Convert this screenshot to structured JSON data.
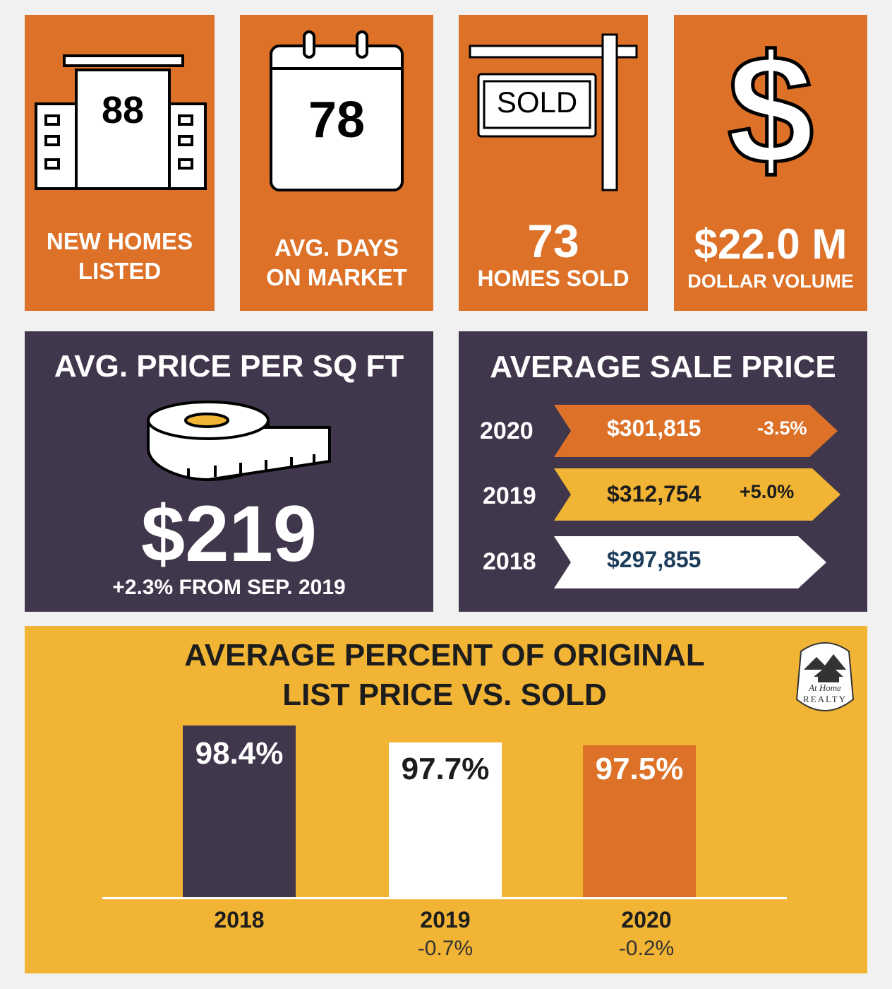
{
  "tiles": {
    "new_homes": {
      "value": "88",
      "label_line1": "NEW HOMES",
      "label_line2": "LISTED"
    },
    "days_on_market": {
      "value": "78",
      "label_line1": "AVG. DAYS",
      "label_line2": "ON MARKET"
    },
    "homes_sold": {
      "sign_text": "SOLD",
      "value": "73",
      "label": "HOMES SOLD"
    },
    "dollar_volume": {
      "symbol": "$",
      "value": "$22.0 M",
      "label": "DOLLAR VOLUME"
    }
  },
  "price_sqft": {
    "title": "AVG. PRICE PER SQ FT",
    "value": "$219",
    "change": "+2.3% FROM SEP. 2019"
  },
  "avg_sale_price": {
    "title": "AVERAGE SALE PRICE",
    "rows": [
      {
        "year": "2020",
        "price": "$301,815",
        "change": "-3.5%",
        "color": "#dd7128"
      },
      {
        "year": "2019",
        "price": "$312,754",
        "change": "+5.0%",
        "color": "#f1b434"
      },
      {
        "year": "2018",
        "price": "$297,855",
        "change": "",
        "color": "#ffffff"
      }
    ]
  },
  "list_vs_sold": {
    "title_line1": "AVERAGE PERCENT OF ORIGINAL",
    "title_line2": "LIST PRICE VS. SOLD",
    "logo_line1": "At Home",
    "logo_line2": "REALTY"
  },
  "chart_data": {
    "type": "bar",
    "categories": [
      "2018",
      "2019",
      "2020"
    ],
    "values": [
      98.4,
      97.7,
      97.5
    ],
    "value_labels": [
      "98.4%",
      "97.7%",
      "97.5%"
    ],
    "changes": [
      "",
      "-0.7%",
      "-0.2%"
    ],
    "colors": [
      "#40374d",
      "#ffffff",
      "#dd7128"
    ],
    "title": "AVERAGE PERCENT OF ORIGINAL LIST PRICE VS. SOLD"
  }
}
